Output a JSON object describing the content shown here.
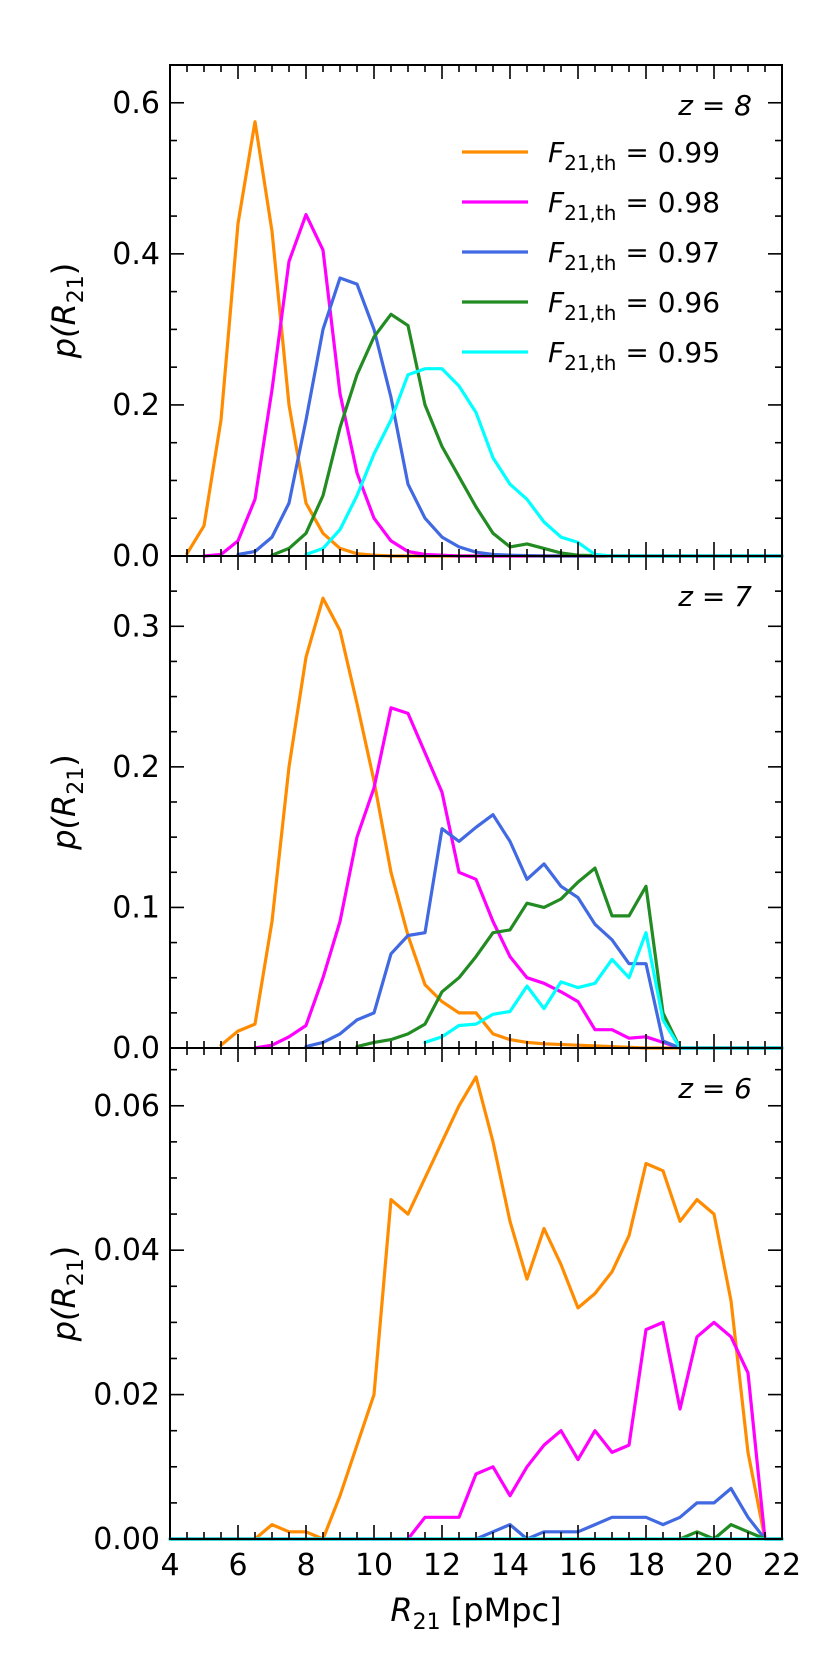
{
  "chart_data": [
    {
      "type": "line",
      "panel_label": "z = 8",
      "ylabel": "p(R21)",
      "xlabel": "",
      "xlim": [
        4,
        22
      ],
      "ylim": [
        0,
        0.65
      ],
      "yticks": [
        0.0,
        0.2,
        0.4,
        0.6
      ],
      "ytick_labels": [
        "0.0",
        "0.2",
        "0.4",
        "0.6"
      ],
      "legend": "top-right",
      "series": [
        {
          "name": "F21,th = 0.99",
          "legend_label": "F_{21,th} = 0.99",
          "color": "#ff8c00",
          "x": [
            4.5,
            5,
            5.5,
            6,
            6.5,
            7,
            7.5,
            8,
            8.5,
            9,
            9.5,
            10,
            10.5,
            11,
            11.5,
            12,
            12.5,
            13,
            14,
            15,
            16,
            17,
            18,
            19,
            20,
            21,
            22
          ],
          "y": [
            0.003,
            0.04,
            0.18,
            0.44,
            0.575,
            0.43,
            0.2,
            0.07,
            0.03,
            0.01,
            0.003,
            0.001,
            0,
            0,
            0,
            0,
            0,
            0,
            0,
            0,
            0,
            0,
            0,
            0,
            0,
            0,
            0
          ]
        },
        {
          "name": "F21,th = 0.98",
          "legend_label": "F_{21,th} = 0.98",
          "color": "#ff00ff",
          "x": [
            5,
            5.5,
            6,
            6.5,
            7,
            7.5,
            8,
            8.5,
            9,
            9.5,
            10,
            10.5,
            11,
            11.5,
            12,
            12.5,
            13,
            14,
            15,
            16,
            17,
            18,
            19,
            20,
            21,
            22
          ],
          "y": [
            0,
            0.002,
            0.02,
            0.075,
            0.22,
            0.39,
            0.452,
            0.405,
            0.215,
            0.11,
            0.05,
            0.02,
            0.006,
            0.002,
            0.001,
            0,
            0,
            0,
            0,
            0,
            0,
            0,
            0,
            0,
            0,
            0
          ]
        },
        {
          "name": "F21,th = 0.97",
          "legend_label": "F_{21,th} = 0.97",
          "color": "#4169e1",
          "x": [
            6,
            6.5,
            7,
            7.5,
            8,
            8.5,
            9,
            9.5,
            10,
            10.5,
            11,
            11.5,
            12,
            12.5,
            13,
            13.5,
            14,
            15,
            16,
            17,
            18,
            19,
            20,
            21,
            22
          ],
          "y": [
            0.002,
            0.006,
            0.025,
            0.07,
            0.18,
            0.3,
            0.368,
            0.36,
            0.3,
            0.21,
            0.095,
            0.05,
            0.025,
            0.012,
            0.005,
            0.002,
            0.001,
            0,
            0,
            0,
            0,
            0,
            0,
            0,
            0
          ]
        },
        {
          "name": "F21,th = 0.96",
          "legend_label": "F_{21,th} = 0.96",
          "color": "#228b22",
          "x": [
            7,
            7.5,
            8,
            8.5,
            9,
            9.5,
            10,
            10.5,
            11,
            11.5,
            12,
            12.5,
            13,
            13.5,
            14,
            14.5,
            15,
            15.5,
            16,
            17,
            18,
            19,
            20,
            21,
            22
          ],
          "y": [
            0.001,
            0.01,
            0.03,
            0.08,
            0.17,
            0.24,
            0.29,
            0.32,
            0.305,
            0.2,
            0.145,
            0.105,
            0.065,
            0.03,
            0.012,
            0.016,
            0.01,
            0.004,
            0.001,
            0,
            0,
            0,
            0,
            0,
            0
          ]
        },
        {
          "name": "F21,th = 0.95",
          "legend_label": "F_{21,th} = 0.95",
          "color": "#00ffff",
          "x": [
            8,
            8.5,
            9,
            9.5,
            10,
            10.5,
            11,
            11.5,
            12,
            12.5,
            13,
            13.5,
            14,
            14.5,
            15,
            15.5,
            16,
            16.5,
            17,
            18,
            19,
            20,
            21,
            22
          ],
          "y": [
            0.002,
            0.01,
            0.035,
            0.08,
            0.135,
            0.18,
            0.24,
            0.248,
            0.248,
            0.225,
            0.19,
            0.13,
            0.095,
            0.075,
            0.045,
            0.025,
            0.018,
            0.002,
            0,
            0,
            0,
            0,
            0,
            0
          ]
        }
      ]
    },
    {
      "type": "line",
      "panel_label": "z = 7",
      "ylabel": "p(R21)",
      "xlabel": "",
      "xlim": [
        4,
        22
      ],
      "ylim": [
        0,
        0.35
      ],
      "yticks": [
        0.0,
        0.1,
        0.2,
        0.3
      ],
      "ytick_labels": [
        "0.0",
        "0.1",
        "0.2",
        "0.3"
      ],
      "series": [
        {
          "name": "F21,th = 0.99",
          "color": "#ff8c00",
          "x": [
            5.5,
            6,
            6.5,
            7,
            7.5,
            8,
            8.5,
            9,
            9.5,
            10,
            10.5,
            11,
            11.5,
            12,
            12.5,
            13,
            13.5,
            14,
            14.5,
            15,
            16,
            17,
            18,
            19,
            20,
            21,
            22
          ],
          "y": [
            0.002,
            0.012,
            0.017,
            0.09,
            0.2,
            0.278,
            0.32,
            0.297,
            0.245,
            0.19,
            0.125,
            0.08,
            0.045,
            0.033,
            0.025,
            0.025,
            0.01,
            0.006,
            0.004,
            0.003,
            0.002,
            0.001,
            0,
            0,
            0,
            0,
            0
          ]
        },
        {
          "name": "F21,th = 0.98",
          "color": "#ff00ff",
          "x": [
            6.5,
            7,
            7.5,
            8,
            8.5,
            9,
            9.5,
            10,
            10.5,
            11,
            11.5,
            12,
            12.5,
            13,
            13.5,
            14,
            14.5,
            15,
            15.5,
            16,
            16.5,
            17,
            17.5,
            18,
            18.5,
            19,
            20,
            21,
            22
          ],
          "y": [
            0,
            0.002,
            0.008,
            0.016,
            0.05,
            0.09,
            0.15,
            0.185,
            0.242,
            0.238,
            0.21,
            0.182,
            0.125,
            0.12,
            0.09,
            0.065,
            0.05,
            0.046,
            0.04,
            0.033,
            0.013,
            0.013,
            0.007,
            0.008,
            0.004,
            0,
            0,
            0,
            0
          ]
        },
        {
          "name": "F21,th = 0.97",
          "color": "#4169e1",
          "x": [
            8,
            8.5,
            9,
            9.5,
            10,
            10.5,
            11,
            11.5,
            12,
            12.5,
            13,
            13.5,
            14,
            14.5,
            15,
            15.5,
            16,
            16.5,
            17,
            17.5,
            18,
            18.5,
            19,
            20,
            21,
            22
          ],
          "y": [
            0.001,
            0.004,
            0.01,
            0.02,
            0.025,
            0.067,
            0.08,
            0.082,
            0.156,
            0.147,
            0.157,
            0.166,
            0.147,
            0.12,
            0.131,
            0.115,
            0.107,
            0.088,
            0.077,
            0.06,
            0.06,
            0.005,
            0,
            0,
            0,
            0
          ]
        },
        {
          "name": "F21,th = 0.96",
          "color": "#228b22",
          "x": [
            9.5,
            10,
            10.5,
            11,
            11.5,
            12,
            12.5,
            13,
            13.5,
            14,
            14.5,
            15,
            15.5,
            16,
            16.5,
            17,
            17.5,
            18,
            18.5,
            19,
            20,
            21,
            22
          ],
          "y": [
            0.001,
            0.004,
            0.006,
            0.01,
            0.017,
            0.04,
            0.05,
            0.065,
            0.082,
            0.084,
            0.103,
            0.1,
            0.106,
            0.118,
            0.128,
            0.094,
            0.094,
            0.115,
            0.025,
            0,
            0,
            0,
            0
          ]
        },
        {
          "name": "F21,th = 0.95",
          "color": "#00ffff",
          "x": [
            11.5,
            12,
            12.5,
            13,
            13.5,
            14,
            14.5,
            15,
            15.5,
            16,
            16.5,
            17,
            17.5,
            18,
            18.5,
            19,
            20,
            21,
            22
          ],
          "y": [
            0.004,
            0.008,
            0.016,
            0.017,
            0.024,
            0.026,
            0.044,
            0.028,
            0.047,
            0.043,
            0.046,
            0.063,
            0.05,
            0.082,
            0.02,
            0,
            0,
            0,
            0
          ]
        }
      ]
    },
    {
      "type": "line",
      "panel_label": "z = 6",
      "ylabel": "p(R21)",
      "xlabel": "R21 [pMpc]",
      "xlim": [
        4,
        22
      ],
      "ylim": [
        0,
        0.068
      ],
      "yticks": [
        0.0,
        0.02,
        0.04,
        0.06
      ],
      "ytick_labels": [
        "0.00",
        "0.02",
        "0.04",
        "0.06"
      ],
      "xticks": [
        4,
        6,
        8,
        10,
        12,
        14,
        16,
        18,
        20,
        22
      ],
      "xtick_labels": [
        "4",
        "6",
        "8",
        "10",
        "12",
        "14",
        "16",
        "18",
        "20",
        "22"
      ],
      "series": [
        {
          "name": "F21,th = 0.99",
          "color": "#ff8c00",
          "x": [
            4,
            6.5,
            7,
            7.5,
            8,
            8.5,
            9,
            9.5,
            10,
            10.5,
            11,
            11.5,
            12,
            12.5,
            13,
            13.5,
            14,
            14.5,
            15,
            15.5,
            16,
            16.5,
            17,
            17.5,
            18,
            18.5,
            19,
            19.5,
            20,
            20.5,
            21,
            21.5,
            22
          ],
          "y": [
            0,
            0,
            0.002,
            0.001,
            0.001,
            0,
            0.006,
            0.013,
            0.02,
            0.047,
            0.045,
            0.05,
            0.055,
            0.06,
            0.064,
            0.055,
            0.044,
            0.036,
            0.043,
            0.038,
            0.032,
            0.034,
            0.037,
            0.042,
            0.052,
            0.051,
            0.044,
            0.047,
            0.045,
            0.033,
            0.012,
            0,
            0
          ]
        },
        {
          "name": "F21,th = 0.98",
          "color": "#ff00ff",
          "x": [
            4,
            10.5,
            11,
            11.5,
            12,
            12.5,
            13,
            13.5,
            14,
            14.5,
            15,
            15.5,
            16,
            16.5,
            17,
            17.5,
            18,
            18.5,
            19,
            19.5,
            20,
            20.5,
            21,
            21.5,
            22
          ],
          "y": [
            0,
            0,
            0,
            0.003,
            0.003,
            0.003,
            0.009,
            0.01,
            0.006,
            0.01,
            0.013,
            0.015,
            0.011,
            0.015,
            0.012,
            0.013,
            0.029,
            0.03,
            0.018,
            0.028,
            0.03,
            0.028,
            0.023,
            0,
            0
          ]
        },
        {
          "name": "F21,th = 0.97",
          "color": "#4169e1",
          "x": [
            4,
            12.5,
            13,
            13.5,
            14,
            14.5,
            15,
            15.5,
            16,
            16.5,
            17,
            17.5,
            18,
            18.5,
            19,
            19.5,
            20,
            20.5,
            21,
            21.5,
            22
          ],
          "y": [
            0,
            0,
            0,
            0.001,
            0.002,
            0,
            0.001,
            0.001,
            0.001,
            0.002,
            0.003,
            0.003,
            0.003,
            0.002,
            0.003,
            0.005,
            0.005,
            0.007,
            0.003,
            0,
            0
          ]
        },
        {
          "name": "F21,th = 0.96",
          "color": "#228b22",
          "x": [
            4,
            19,
            19.5,
            20,
            20.5,
            21,
            21.5,
            22
          ],
          "y": [
            0,
            0,
            0.001,
            0,
            0.002,
            0.001,
            0,
            0
          ]
        },
        {
          "name": "F21,th = 0.95",
          "color": "#00ffff",
          "x": [
            4,
            22
          ],
          "y": [
            0,
            0
          ]
        }
      ]
    }
  ]
}
